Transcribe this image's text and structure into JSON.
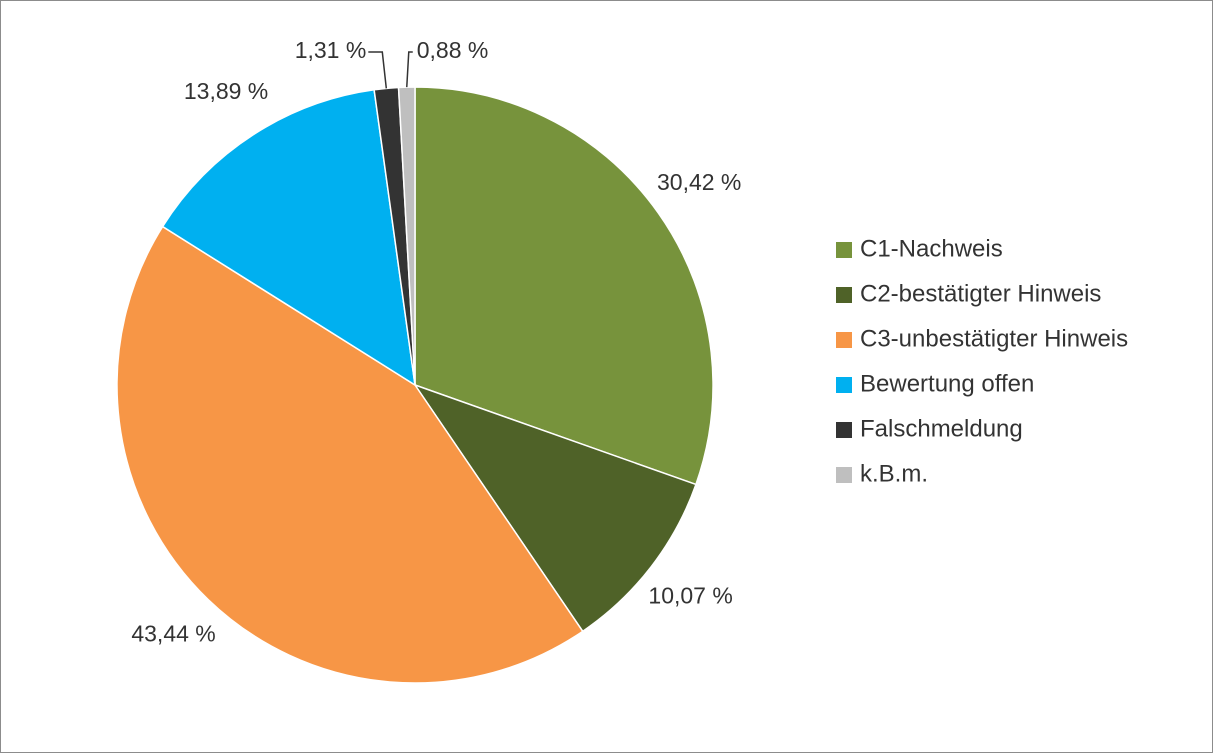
{
  "chart_data": {
    "type": "pie",
    "categories": [
      "C1-Nachweis",
      "C2-bestätigter Hinweis",
      "C3-unbestätigter Hinweis",
      "Bewertung offen",
      "Falschmeldung",
      "k.B.m."
    ],
    "values": [
      30.42,
      10.07,
      43.44,
      13.89,
      1.31,
      0.88
    ],
    "value_labels": [
      "30,42 %",
      "10,07 %",
      "43,44 %",
      "13,89 %",
      "1,31 %",
      "0,88 %"
    ],
    "colors": [
      "#77933c",
      "#4f6228",
      "#f79646",
      "#00b0f0",
      "#333333",
      "#bfbfbf"
    ],
    "legend": "right"
  }
}
